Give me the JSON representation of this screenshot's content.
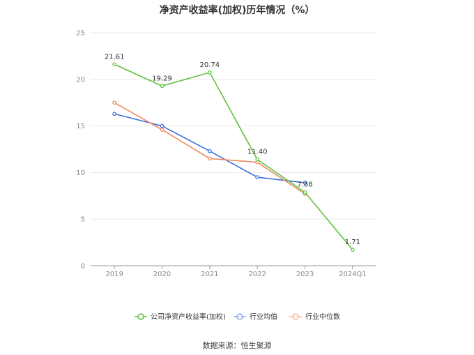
{
  "chart_data": {
    "type": "line",
    "title": "净资产收益率(加权)历年情况（%）",
    "categories": [
      "2019",
      "2020",
      "2021",
      "2022",
      "2023",
      "2024Q1"
    ],
    "y_ticks": [
      "0",
      "5",
      "10",
      "15",
      "20",
      "25"
    ],
    "ylim": [
      0,
      25
    ],
    "grid": true,
    "legend_position": "bottom",
    "series": [
      {
        "name": "公司净资产收益率(加权)",
        "color": "#5ec23c",
        "values": [
          21.61,
          19.29,
          20.74,
          11.4,
          7.88,
          1.71
        ],
        "labels": [
          "21.61",
          "19.29",
          "20.74",
          "11.40",
          "7.88",
          "1.71"
        ]
      },
      {
        "name": "行业均值",
        "color": "#3d6fdc",
        "values": [
          16.3,
          15.0,
          12.3,
          9.5,
          8.9,
          null
        ]
      },
      {
        "name": "行业中位数",
        "color": "#f0895e",
        "values": [
          17.5,
          14.6,
          11.5,
          11.1,
          7.7,
          null
        ]
      }
    ]
  },
  "source": "数据来源：恒生聚源"
}
